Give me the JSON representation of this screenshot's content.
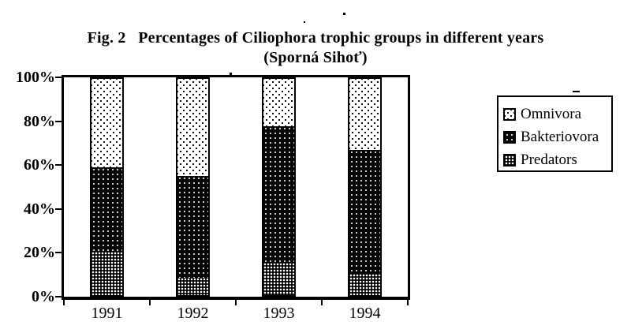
{
  "figure": {
    "title_line1": "Fig. 2   Percentages of Ciliophora trophic groups in different years",
    "title_line2": "(Sporná Sihoť)"
  },
  "chart_data": {
    "type": "bar",
    "stacked": true,
    "title": "Fig. 2 Percentages of Ciliophora trophic groups in different years (Sporná Sihoť)",
    "categories": [
      "1991",
      "1992",
      "1993",
      "1994"
    ],
    "series": [
      {
        "name": "Predators",
        "pattern": "hatch-dark",
        "values": [
          20,
          8,
          15,
          10
        ]
      },
      {
        "name": "Bakteriovora",
        "pattern": "speckle-dark",
        "values": [
          39,
          47,
          63,
          57
        ]
      },
      {
        "name": "Omnivora",
        "pattern": "dots-light",
        "values": [
          41,
          45,
          22,
          33
        ]
      }
    ],
    "ylabel": "",
    "xlabel": "",
    "ylim": [
      0,
      100
    ],
    "y_ticks": [
      "0%",
      "20%",
      "40%",
      "60%",
      "80%",
      "100%"
    ],
    "grid": false,
    "legend": {
      "position": "right",
      "items": [
        {
          "label": "Omnivora",
          "pattern": "dots-light"
        },
        {
          "label": "Bakteriovora",
          "pattern": "speckle-dark"
        },
        {
          "label": "Predators",
          "pattern": "hatch-dark"
        }
      ]
    },
    "colors": {
      "ink": "#000000",
      "paper": "#ffffff"
    }
  }
}
